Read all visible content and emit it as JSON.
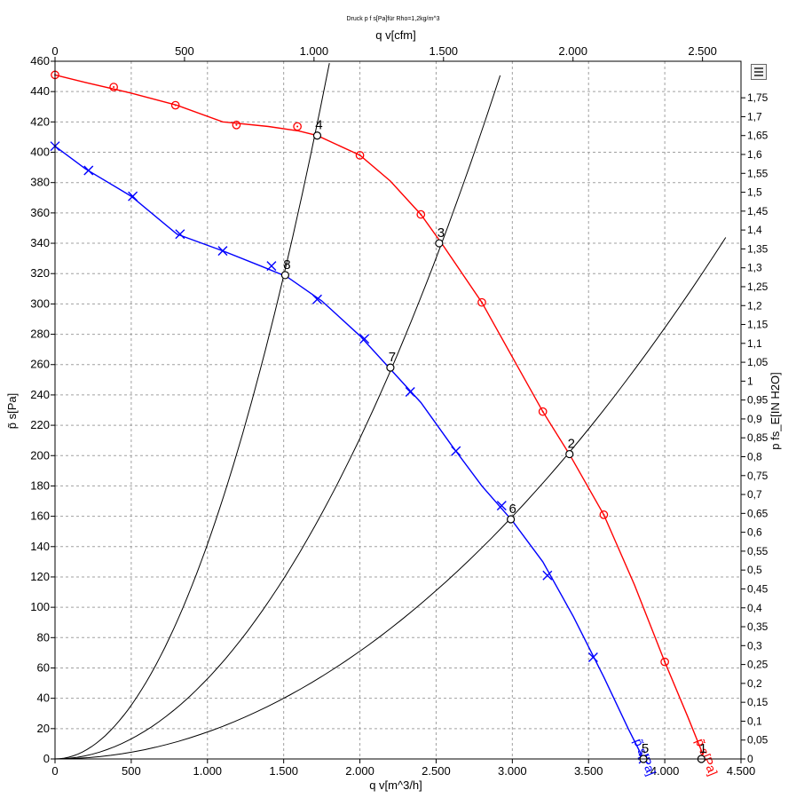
{
  "chart_data": {
    "type": "line",
    "title": "Druck p f s[Pa]für Rho=1,2kg/m^3",
    "xlabel": "q v[m^3/h]",
    "x2label": "q v[cfm]",
    "ylabel": "p̃ s[Pa]",
    "y2label": "p fs_E[IN H2O]",
    "xlim": [
      0,
      4500
    ],
    "ylim": [
      0,
      460
    ],
    "x2lim": [
      0,
      2648.6
    ],
    "y2lim": [
      0,
      1.8467
    ],
    "grid": true,
    "x_ticks": [
      {
        "v": 0,
        "label": "0"
      },
      {
        "v": 500,
        "label": "500"
      },
      {
        "v": 1000,
        "label": "1.000"
      },
      {
        "v": 1500,
        "label": "1.500"
      },
      {
        "v": 2000,
        "label": "2.000"
      },
      {
        "v": 2500,
        "label": "2.500"
      },
      {
        "v": 3000,
        "label": "3.000"
      },
      {
        "v": 3500,
        "label": "3.500"
      },
      {
        "v": 4000,
        "label": "4.000"
      },
      {
        "v": 4500,
        "label": "4.500"
      }
    ],
    "x2_ticks": [
      {
        "v": 0,
        "label": "0"
      },
      {
        "v": 500,
        "label": "500"
      },
      {
        "v": 1000,
        "label": "1.000"
      },
      {
        "v": 1500,
        "label": "1.500"
      },
      {
        "v": 2000,
        "label": "2.000"
      },
      {
        "v": 2500,
        "label": "2.500"
      }
    ],
    "y_ticks": [
      0,
      20,
      40,
      60,
      80,
      100,
      120,
      140,
      160,
      180,
      200,
      220,
      240,
      260,
      280,
      300,
      320,
      340,
      360,
      380,
      400,
      420,
      440,
      460
    ],
    "y2_ticks": [
      {
        "v": 0,
        "label": "0"
      },
      {
        "v": 0.05,
        "label": "0,05"
      },
      {
        "v": 0.1,
        "label": "0,1"
      },
      {
        "v": 0.15,
        "label": "0,15"
      },
      {
        "v": 0.2,
        "label": "0,2"
      },
      {
        "v": 0.25,
        "label": "0,25"
      },
      {
        "v": 0.3,
        "label": "0,3"
      },
      {
        "v": 0.35,
        "label": "0,35"
      },
      {
        "v": 0.4,
        "label": "0,4"
      },
      {
        "v": 0.45,
        "label": "0,45"
      },
      {
        "v": 0.5,
        "label": "0,5"
      },
      {
        "v": 0.55,
        "label": "0,55"
      },
      {
        "v": 0.6,
        "label": "0,6"
      },
      {
        "v": 0.65,
        "label": "0,65"
      },
      {
        "v": 0.7,
        "label": "0,7"
      },
      {
        "v": 0.75,
        "label": "0,75"
      },
      {
        "v": 0.8,
        "label": "0,8"
      },
      {
        "v": 0.85,
        "label": "0,85"
      },
      {
        "v": 0.9,
        "label": "0,9"
      },
      {
        "v": 0.95,
        "label": "0,95"
      },
      {
        "v": 1,
        "label": "1"
      },
      {
        "v": 1.05,
        "label": "1,05"
      },
      {
        "v": 1.1,
        "label": "1,1"
      },
      {
        "v": 1.15,
        "label": "1,15"
      },
      {
        "v": 1.2,
        "label": "1,2"
      },
      {
        "v": 1.25,
        "label": "1,25"
      },
      {
        "v": 1.3,
        "label": "1,3"
      },
      {
        "v": 1.35,
        "label": "1,35"
      },
      {
        "v": 1.4,
        "label": "1,4"
      },
      {
        "v": 1.45,
        "label": "1,45"
      },
      {
        "v": 1.5,
        "label": "1,5"
      },
      {
        "v": 1.55,
        "label": "1,55"
      },
      {
        "v": 1.6,
        "label": "1,6"
      },
      {
        "v": 1.65,
        "label": "1,65"
      },
      {
        "v": 1.7,
        "label": "1,7"
      },
      {
        "v": 1.75,
        "label": "1,75"
      }
    ],
    "series": [
      {
        "name": "p̃ s[Pa]",
        "color": "#ff0000",
        "marker": "circle",
        "label_at": [
          4200,
          12
        ],
        "x": [
          0,
          200,
          500,
          800,
          1100,
          1400,
          1600,
          1720,
          1850,
          2000,
          2200,
          2400,
          2550,
          2800,
          3000,
          3200,
          3380,
          3600,
          3800,
          4000,
          4150,
          4250
        ],
        "y": [
          451,
          446,
          439,
          431,
          420,
          417,
          414,
          411,
          405,
          398,
          381,
          359,
          338,
          301,
          265,
          229,
          200,
          161,
          115,
          64,
          28,
          3
        ],
        "markers_x": [
          0,
          385,
          790,
          1190,
          1590,
          2000,
          2400,
          2800,
          3200,
          3600,
          4000
        ],
        "markers_y": [
          451,
          443,
          431,
          418,
          417,
          398,
          359,
          301,
          229,
          161,
          64
        ]
      },
      {
        "name": "p̃ s[Pa]",
        "color": "#0000ff",
        "marker": "x",
        "label_at": [
          3795,
          12
        ],
        "x": [
          0,
          200,
          500,
          800,
          1100,
          1350,
          1520,
          1750,
          2000,
          2200,
          2400,
          2600,
          2800,
          3000,
          3200,
          3400,
          3600,
          3760,
          3860
        ],
        "y": [
          404,
          389,
          371,
          346,
          335,
          325,
          318,
          302,
          279,
          257,
          235,
          207,
          180,
          157,
          130,
          94,
          54,
          20,
          0
        ],
        "markers_x": [
          0,
          220,
          510,
          820,
          1100,
          1420,
          1720,
          2030,
          2330,
          2630,
          2930,
          3230,
          3530,
          3860
        ],
        "markers_y": [
          404,
          388,
          371,
          346,
          335,
          325,
          303,
          277,
          242,
          203,
          167,
          121,
          67,
          0
        ]
      }
    ],
    "system_curves": [
      {
        "k": 0.0001416,
        "x_max": 1800
      },
      {
        "k": 5.285e-05,
        "x_max": 2920
      },
      {
        "k": 1.776e-05,
        "x_max": 4400
      }
    ],
    "operating_points": [
      {
        "label": "1",
        "x": 4240,
        "y": 0
      },
      {
        "label": "2",
        "x": 3375,
        "y": 201
      },
      {
        "label": "3",
        "x": 2520,
        "y": 340
      },
      {
        "label": "4",
        "x": 1720,
        "y": 411
      },
      {
        "label": "5",
        "x": 3860,
        "y": 0
      },
      {
        "label": "6",
        "x": 2990,
        "y": 158
      },
      {
        "label": "7",
        "x": 2200,
        "y": 258
      },
      {
        "label": "8",
        "x": 1510,
        "y": 319
      }
    ]
  }
}
